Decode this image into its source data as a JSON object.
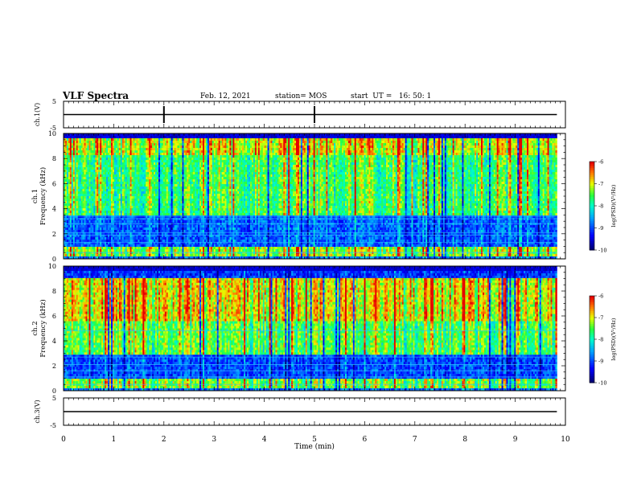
{
  "header": {
    "title": "VLF Spectra",
    "date": "Feb. 12, 2021",
    "station": "station= MOS",
    "start_ut": "start  UT =   16: 50: 1"
  },
  "chart_data": [
    {
      "type": "line",
      "panel": "ch1-waveform",
      "ylabel": "ch.1(V)",
      "ylim": [
        -5,
        5
      ],
      "yticks": [
        5,
        -5
      ],
      "x": [
        0,
        9.83
      ],
      "values": [
        0,
        0
      ]
    },
    {
      "type": "heatmap",
      "panel": "ch1-spectrogram",
      "ylabel": "ch.1\nFrequency (kHz)",
      "ylim": [
        0,
        10
      ],
      "yticks": [
        0,
        2,
        4,
        6,
        8,
        10
      ],
      "xlim": [
        0,
        9.83
      ],
      "colorbar": {
        "label": "log(PSD)(V²/Hz)",
        "range": [
          -10,
          -6
        ],
        "ticks": [
          -6,
          -7,
          -8,
          -9,
          -10
        ]
      },
      "features": {
        "strong_band_kHz": [
          8.2,
          9.5
        ],
        "low_band_kHz": [
          0.2,
          0.8
        ],
        "quiet_band_kHz": [
          1.0,
          3.5
        ],
        "lines_kHz": [
          0.5,
          1.3,
          1.9,
          2.1,
          2.8,
          3.2,
          3.4
        ]
      }
    },
    {
      "type": "heatmap",
      "panel": "ch2-spectrogram",
      "ylabel": "ch.2\nFrequency (kHz)",
      "ylim": [
        0,
        10
      ],
      "yticks": [
        0,
        2,
        4,
        6,
        8,
        10
      ],
      "xlim": [
        0,
        9.83
      ],
      "colorbar": {
        "label": "log(PSD)(V²/Hz)",
        "range": [
          -10,
          -6
        ],
        "ticks": [
          -6,
          -7,
          -8,
          -9,
          -10
        ]
      },
      "features": {
        "strong_band_kHz": [
          5.5,
          9.0
        ],
        "low_band_kHz": [
          0.2,
          0.8
        ],
        "quiet_band_kHz": [
          1.0,
          2.8
        ],
        "lines_kHz": [
          0.5,
          1.1,
          1.6,
          2.1,
          2.7,
          4.8
        ]
      }
    },
    {
      "type": "line",
      "panel": "ch3-waveform",
      "ylabel": "ch.3(V)",
      "xlabel": "Time  (min)",
      "ylim": [
        -5,
        5
      ],
      "yticks": [
        5,
        -5
      ],
      "xlim": [
        0,
        10
      ],
      "xticks": [
        0,
        1,
        2,
        3,
        4,
        5,
        6,
        7,
        8,
        9,
        10
      ],
      "x": [
        0,
        9.83
      ],
      "values": [
        0,
        0
      ]
    }
  ],
  "colors": {
    "low": "#00007f",
    "mid": "#00ff80",
    "high": "#ff2000"
  }
}
